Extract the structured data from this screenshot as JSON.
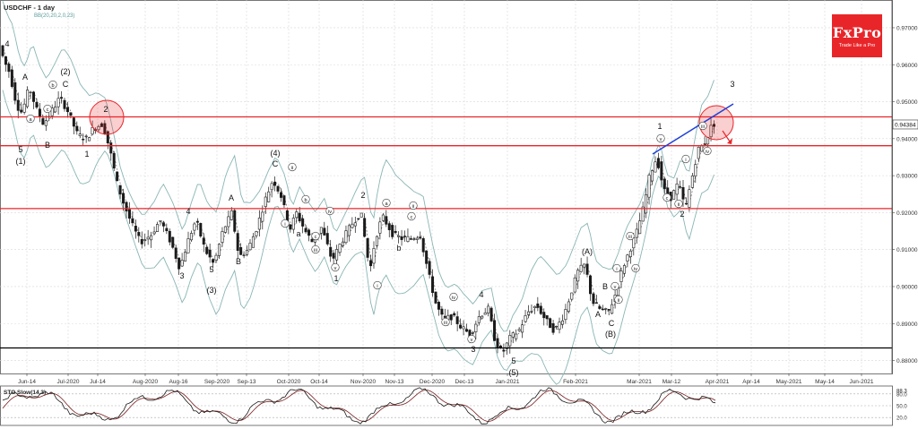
{
  "header": {
    "symbol": "USDCHF - 1 day",
    "indicator": "BB(20,20,2,0,23)"
  },
  "logo": {
    "name": "FxPro",
    "tagline": "Trade Like a Pro",
    "color": "#e8262a"
  },
  "current_price": "0.94384",
  "stoch": {
    "label": "STO Slow(14,3)",
    "levels": [
      "80.0",
      "50.0",
      "20.0"
    ],
    "current": "88.3"
  },
  "colors": {
    "candle": "#1a1a1a",
    "band": "#8ab5b5",
    "resistance": "#e8262a",
    "support": "#000000",
    "trend": "#1f3fd8"
  },
  "chart_data": {
    "type": "candlestick",
    "xlabels": [
      "Jun-14",
      "Jul-2020",
      "Jul-14",
      "Aug-2020",
      "Aug-16",
      "Sep-2020",
      "Sep-13",
      "Oct-2020",
      "Oct-14",
      "Nov-2020",
      "Nov-13",
      "Dec-2020",
      "Dec-13",
      "Jan-2021",
      "Feb-2021",
      "Mar-2021",
      "Mar-12",
      "Apr-2021",
      "Apr-14",
      "May-2021",
      "May-14",
      "Jun-2021"
    ],
    "yticks": [
      "0.97000",
      "0.96000",
      "0.95000",
      "0.94000",
      "0.93000",
      "0.92000",
      "0.91000",
      "0.90000",
      "0.89000",
      "0.88000"
    ],
    "ylim": [
      0.8765,
      0.9775
    ],
    "horizontal_levels": [
      {
        "value": 0.9459,
        "role": "resistance"
      },
      {
        "value": 0.9381,
        "role": "resistance"
      },
      {
        "value": 0.9211,
        "role": "resistance"
      },
      {
        "value": 0.8834,
        "role": "support"
      }
    ],
    "wave_labels": [
      "4",
      "A",
      "5",
      "(1)",
      "B",
      "b",
      "a",
      "c",
      "(2)",
      "C",
      "1",
      "2",
      "4",
      "3",
      "5",
      "(3)",
      "A",
      "B",
      "(4)",
      "C",
      "ii",
      "i",
      "iii",
      "iv",
      "a",
      "b",
      "c",
      "v",
      "1",
      "2",
      "a",
      "b",
      "c",
      "ii",
      "iv",
      "iii",
      "v",
      "i",
      "4",
      "3",
      "5",
      "(5)",
      "(A)",
      "B",
      "A",
      "C",
      "(B)",
      "iii",
      "iv",
      "ii",
      "v",
      "i",
      "1",
      "c",
      "ii",
      "2",
      "iii",
      "iv",
      "i",
      "v",
      "3"
    ]
  }
}
